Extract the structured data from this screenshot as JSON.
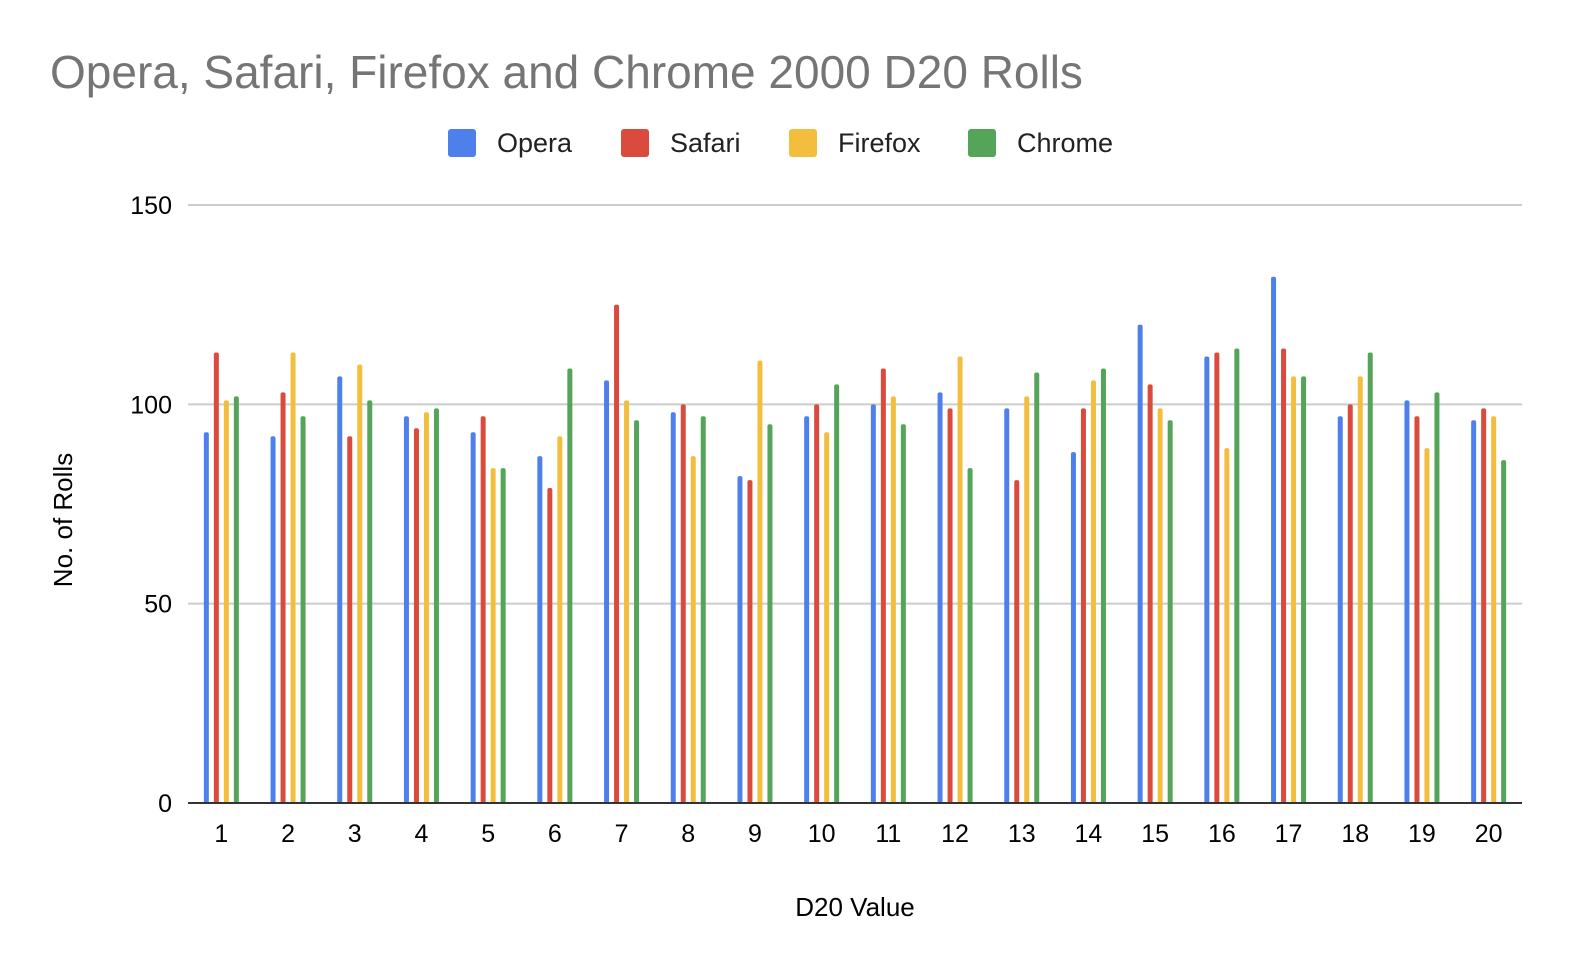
{
  "chart_data": {
    "type": "bar",
    "title": "Opera, Safari, Firefox and Chrome 2000 D20 Rolls",
    "xlabel": "D20 Value",
    "ylabel": "No. of Rolls",
    "ylim": [
      0,
      150
    ],
    "yticks": [
      "0",
      "50",
      "100",
      "150"
    ],
    "grid": true,
    "legend_position": "top-center",
    "categories": [
      "1",
      "2",
      "3",
      "4",
      "5",
      "6",
      "7",
      "8",
      "9",
      "10",
      "11",
      "12",
      "13",
      "14",
      "15",
      "16",
      "17",
      "18",
      "19",
      "20"
    ],
    "series": [
      {
        "name": "Opera",
        "color": "#4e80ec",
        "values": [
          93,
          92,
          107,
          97,
          93,
          87,
          106,
          98,
          82,
          97,
          100,
          103,
          99,
          88,
          120,
          112,
          132,
          97,
          101,
          96
        ]
      },
      {
        "name": "Safari",
        "color": "#db4b3d",
        "values": [
          113,
          103,
          92,
          94,
          97,
          79,
          125,
          100,
          81,
          100,
          109,
          99,
          81,
          99,
          105,
          113,
          114,
          100,
          97,
          99
        ]
      },
      {
        "name": "Firefox",
        "color": "#f3be3e",
        "values": [
          101,
          113,
          110,
          98,
          84,
          92,
          101,
          87,
          111,
          93,
          102,
          112,
          102,
          106,
          99,
          89,
          107,
          107,
          89,
          97
        ]
      },
      {
        "name": "Chrome",
        "color": "#54a55a",
        "values": [
          102,
          97,
          101,
          99,
          84,
          109,
          96,
          97,
          95,
          105,
          95,
          84,
          108,
          109,
          96,
          114,
          107,
          113,
          103,
          86
        ]
      }
    ]
  }
}
